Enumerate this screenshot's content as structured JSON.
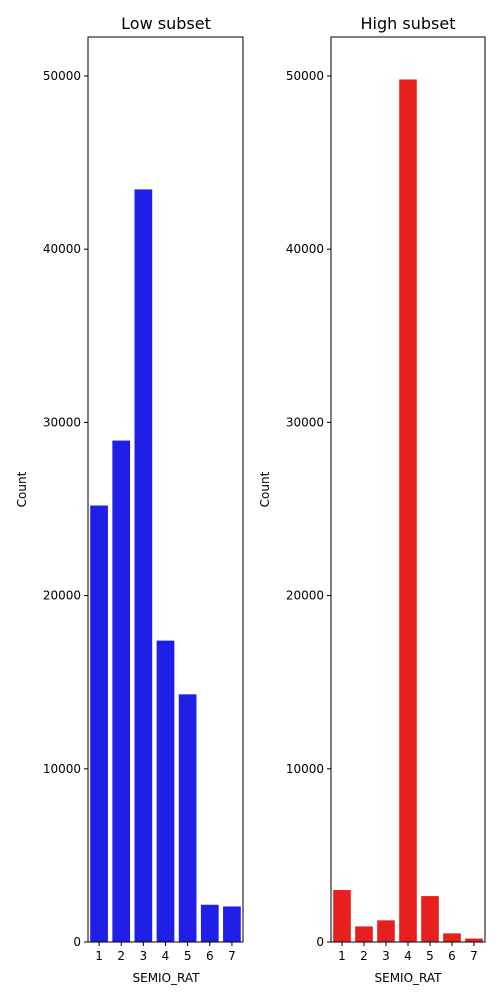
{
  "chart_data": [
    {
      "type": "bar",
      "title": "Low subset",
      "xlabel": "SEMIO_RAT",
      "ylabel": "Count",
      "categories": [
        "1",
        "2",
        "3",
        "4",
        "5",
        "6",
        "7"
      ],
      "values": [
        25200,
        28950,
        43450,
        17400,
        14300,
        2150,
        2050
      ],
      "ylim": [
        0,
        52250
      ],
      "yticks": [
        0,
        10000,
        20000,
        30000,
        40000,
        50000
      ],
      "color": "#1f1fe8",
      "grid": false
    },
    {
      "type": "bar",
      "title": "High subset",
      "xlabel": "SEMIO_RAT",
      "ylabel": "Count",
      "categories": [
        "1",
        "2",
        "3",
        "4",
        "5",
        "6",
        "7"
      ],
      "values": [
        3000,
        900,
        1250,
        49800,
        2650,
        500,
        200
      ],
      "ylim": [
        0,
        52250
      ],
      "yticks": [
        0,
        10000,
        20000,
        30000,
        40000,
        50000
      ],
      "color": "#e81f1f",
      "grid": false
    }
  ]
}
